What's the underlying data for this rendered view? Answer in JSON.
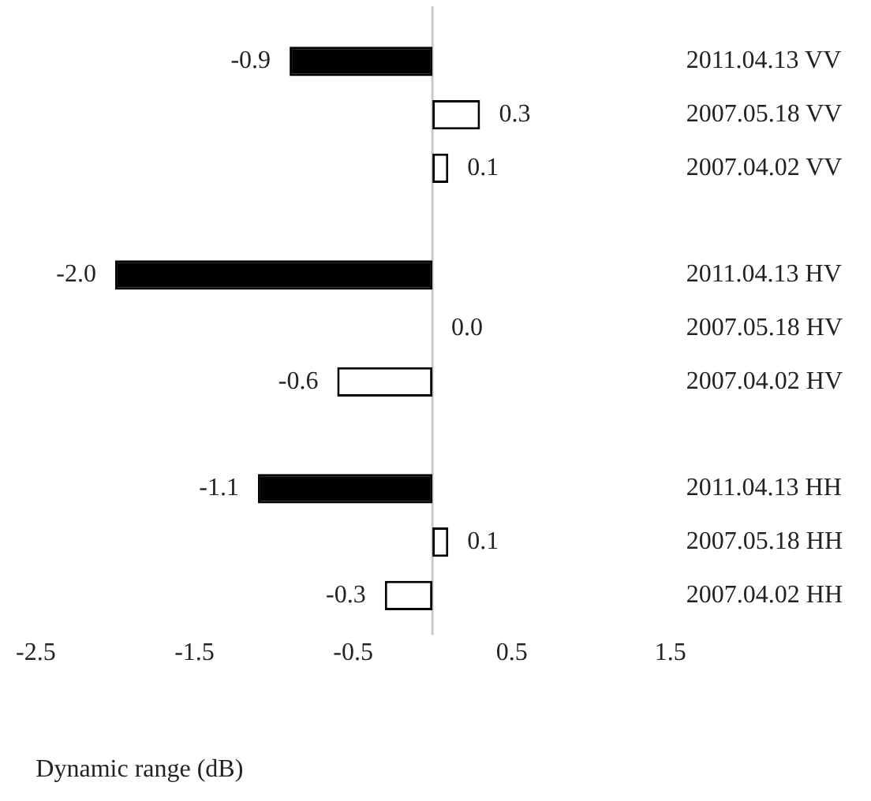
{
  "chart_data": {
    "type": "bar",
    "orientation": "horizontal",
    "xlabel": "Dynamic range (dB)",
    "categories": [
      "2011.04.13 VV",
      "2007.05.18 VV",
      "2007.04.02 VV",
      null,
      "2011.04.13 HV",
      "2007.05.18 HV",
      "2007.04.02 HV",
      null,
      "2011.04.13 HH",
      "2007.05.18 HH",
      "2007.04.02 HH"
    ],
    "values": [
      -0.9,
      0.3,
      0.1,
      null,
      -2.0,
      0.0,
      -0.6,
      null,
      -1.1,
      0.1,
      -0.3
    ],
    "colors": [
      "#000000",
      "#ffffff",
      "#ffffff",
      null,
      "#000000",
      "#ffffff",
      "#ffffff",
      null,
      "#000000",
      "#ffffff",
      "#ffffff"
    ],
    "value_labels": [
      "-0.9",
      "0.3",
      "0.1",
      null,
      "-2.0",
      "0.0",
      "-0.6",
      null,
      "-1.1",
      "0.1",
      "-0.3"
    ],
    "xlim": [
      -2.5,
      1.5
    ],
    "xticks": [
      -2.5,
      -1.5,
      -0.5,
      0.5,
      1.5
    ],
    "grid": false,
    "legend": false
  }
}
